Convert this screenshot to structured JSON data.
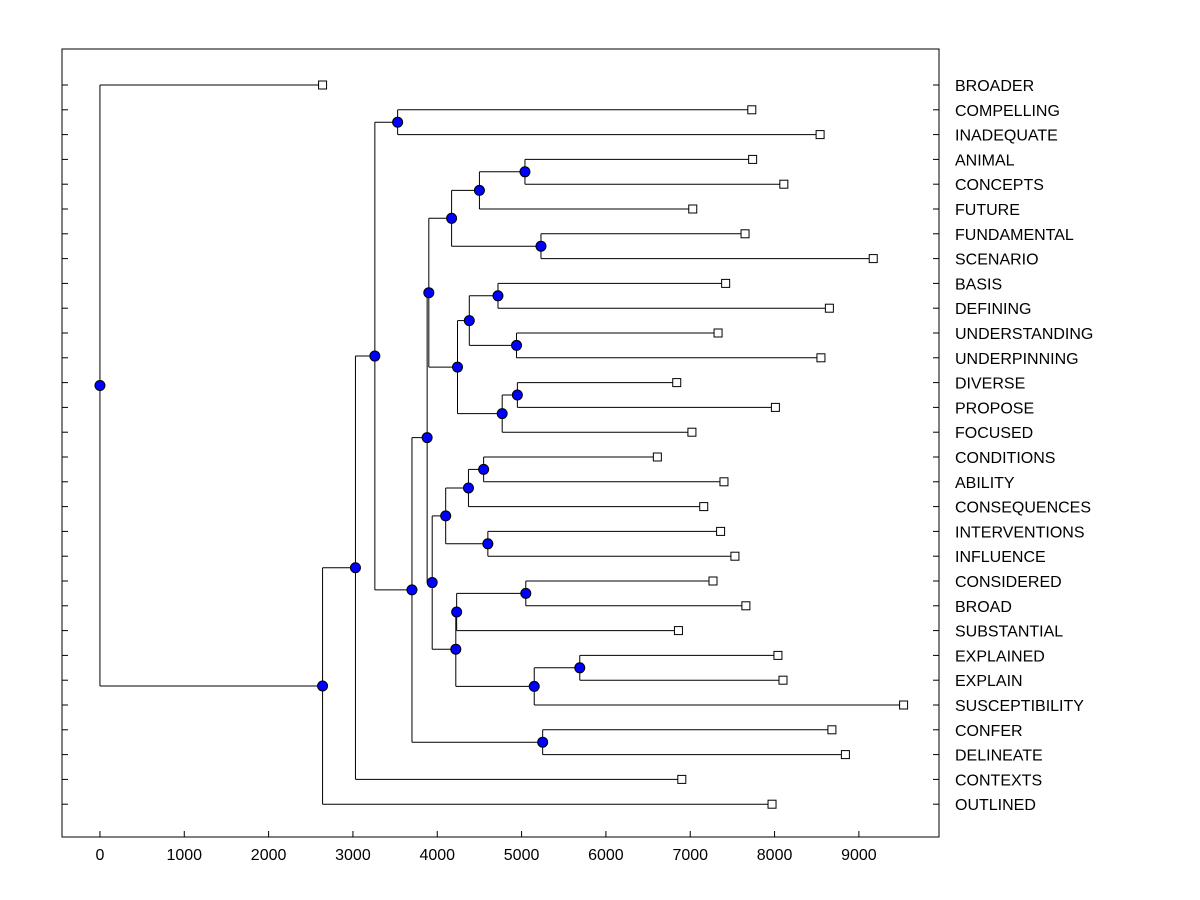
{
  "chart_data": {
    "type": "dendrogram",
    "title": "",
    "xlabel": "",
    "ylabel": "",
    "xlim": [
      -450,
      9950
    ],
    "x_ticks": [
      0,
      1000,
      2000,
      3000,
      4000,
      5000,
      6000,
      7000,
      8000,
      9000
    ],
    "leaves": [
      {
        "label": "BROADER",
        "value": 2640
      },
      {
        "label": "COMPELLING",
        "value": 7730
      },
      {
        "label": "INADEQUATE",
        "value": 8540
      },
      {
        "label": "ANIMAL",
        "value": 7740
      },
      {
        "label": "CONCEPTS",
        "value": 8110
      },
      {
        "label": "FUTURE",
        "value": 7030
      },
      {
        "label": "FUNDAMENTAL",
        "value": 7650
      },
      {
        "label": "SCENARIO",
        "value": 9170
      },
      {
        "label": "BASIS",
        "value": 7420
      },
      {
        "label": "DEFINING",
        "value": 8650
      },
      {
        "label": "UNDERSTANDING",
        "value": 7330
      },
      {
        "label": "UNDERPINNING",
        "value": 8550
      },
      {
        "label": "DIVERSE",
        "value": 6840
      },
      {
        "label": "PROPOSE",
        "value": 8010
      },
      {
        "label": "FOCUSED",
        "value": 7020
      },
      {
        "label": "CONDITIONS",
        "value": 6610
      },
      {
        "label": "ABILITY",
        "value": 7400
      },
      {
        "label": "CONSEQUENCES",
        "value": 7160
      },
      {
        "label": "INTERVENTIONS",
        "value": 7360
      },
      {
        "label": "INFLUENCE",
        "value": 7530
      },
      {
        "label": "CONSIDERED",
        "value": 7270
      },
      {
        "label": "BROAD",
        "value": 7660
      },
      {
        "label": "SUBSTANTIAL",
        "value": 6860
      },
      {
        "label": "EXPLAINED",
        "value": 8040
      },
      {
        "label": "EXPLAIN",
        "value": 8100
      },
      {
        "label": "SUSCEPTIBILITY",
        "value": 9530
      },
      {
        "label": "CONFER",
        "value": 8680
      },
      {
        "label": "DELINEATE",
        "value": 8840
      },
      {
        "label": "CONTEXTS",
        "value": 6900
      },
      {
        "label": "OUTLINED",
        "value": 7970
      }
    ],
    "merges": [
      {
        "id": "n1",
        "value": 3530,
        "children": [
          "L1",
          "L2"
        ]
      },
      {
        "id": "n2",
        "value": 5040,
        "children": [
          "L3",
          "L4"
        ]
      },
      {
        "id": "n3",
        "value": 4500,
        "children": [
          "n2",
          "L5"
        ]
      },
      {
        "id": "n4",
        "value": 5230,
        "children": [
          "L6",
          "L7"
        ]
      },
      {
        "id": "n5",
        "value": 4170,
        "children": [
          "n3",
          "n4"
        ]
      },
      {
        "id": "n6",
        "value": 4720,
        "children": [
          "L8",
          "L9"
        ]
      },
      {
        "id": "n7",
        "value": 4940,
        "children": [
          "L10",
          "L11"
        ]
      },
      {
        "id": "n8",
        "value": 4380,
        "children": [
          "n6",
          "n7"
        ]
      },
      {
        "id": "n9",
        "value": 4950,
        "children": [
          "L12",
          "L13"
        ]
      },
      {
        "id": "n10",
        "value": 4770,
        "children": [
          "n9",
          "L14"
        ]
      },
      {
        "id": "n11",
        "value": 4240,
        "children": [
          "n8",
          "n10"
        ]
      },
      {
        "id": "n12",
        "value": 3900,
        "children": [
          "n5",
          "n11"
        ]
      },
      {
        "id": "n13",
        "value": 4550,
        "children": [
          "L15",
          "L16"
        ]
      },
      {
        "id": "n14",
        "value": 4370,
        "children": [
          "n13",
          "L17"
        ]
      },
      {
        "id": "n15",
        "value": 4600,
        "children": [
          "L18",
          "L19"
        ]
      },
      {
        "id": "n16",
        "value": 4100,
        "children": [
          "n14",
          "n15"
        ]
      },
      {
        "id": "n17",
        "value": 5050,
        "children": [
          "L20",
          "L21"
        ]
      },
      {
        "id": "n18",
        "value": 4230,
        "children": [
          "n17",
          "L22"
        ]
      },
      {
        "id": "n19",
        "value": 5690,
        "children": [
          "L23",
          "L24"
        ]
      },
      {
        "id": "n20",
        "value": 5150,
        "children": [
          "n19",
          "L25"
        ]
      },
      {
        "id": "n21",
        "value": 4220,
        "children": [
          "n18",
          "n20"
        ]
      },
      {
        "id": "n22",
        "value": 3940,
        "children": [
          "n16",
          "n21"
        ]
      },
      {
        "id": "n23",
        "value": 3880,
        "children": [
          "n12",
          "n22"
        ]
      },
      {
        "id": "n24",
        "value": 5250,
        "children": [
          "L26",
          "L27"
        ]
      },
      {
        "id": "n25",
        "value": 3700,
        "children": [
          "n23",
          "n24"
        ]
      },
      {
        "id": "n26",
        "value": 3260,
        "children": [
          "n1",
          "n25"
        ]
      },
      {
        "id": "n27",
        "value": 3030,
        "children": [
          "n26",
          "L28"
        ]
      },
      {
        "id": "n28",
        "value": 2640,
        "children": [
          "n27",
          "L29"
        ]
      },
      {
        "id": "n29",
        "value": 0,
        "children": [
          "L0",
          "n28"
        ]
      }
    ],
    "colors": {
      "node_fill": "#0000ff",
      "leaf_fill": "#ffffff",
      "line": "#000000"
    }
  }
}
